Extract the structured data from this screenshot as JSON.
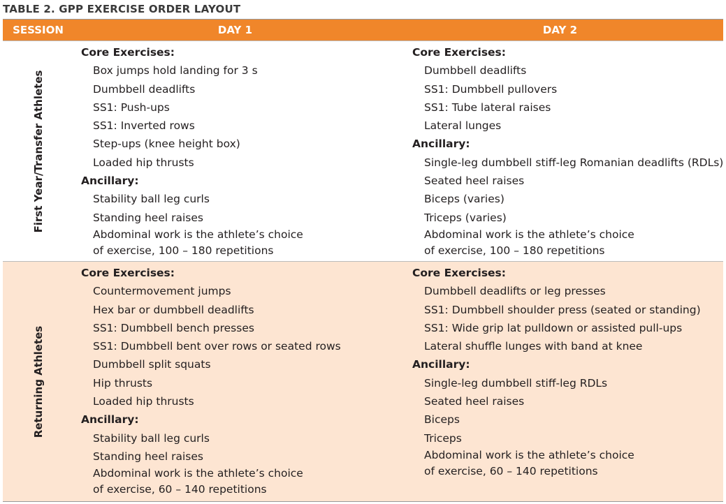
{
  "title": "TABLE 2. GPP EXERCISE ORDER LAYOUT",
  "table": {
    "headers": [
      "SESSION",
      "DAY 1",
      "DAY 2"
    ],
    "rows": [
      {
        "session": "First Year/Transfer Athletes",
        "days": [
          {
            "groups": [
              {
                "heading": "Core Exercises:",
                "items": [
                  "Box jumps hold landing for 3 s",
                  "Dumbbell deadlifts",
                  "SS1: Push-ups",
                  "SS1: Inverted rows",
                  "Step-ups (knee height box)",
                  "Loaded hip thrusts"
                ]
              },
              {
                "heading": "Ancillary:",
                "items": [
                  "Stability ball leg curls",
                  "Standing heel raises"
                ]
              }
            ],
            "note": [
              "Abdominal work is the athlete’s choice",
              "of exercise, 100 – 180 repetitions"
            ]
          },
          {
            "groups": [
              {
                "heading": "Core Exercises:",
                "items": [
                  "Dumbbell deadlifts",
                  "SS1: Dumbbell pullovers",
                  "SS1: Tube lateral raises",
                  "Lateral lunges"
                ]
              },
              {
                "heading": "Ancillary:",
                "items": [
                  "Single-leg dumbbell stiff-leg Romanian deadlifts (RDLs)",
                  "Seated heel raises",
                  "Biceps (varies)",
                  "Triceps (varies)"
                ]
              }
            ],
            "note": [
              "Abdominal work is the athlete’s choice",
              "of exercise, 100 – 180 repetitions"
            ]
          }
        ]
      },
      {
        "session": "Returning Athletes",
        "days": [
          {
            "groups": [
              {
                "heading": "Core Exercises:",
                "items": [
                  "Countermovement jumps",
                  "Hex bar or dumbbell deadlifts",
                  "SS1: Dumbbell bench presses",
                  "SS1: Dumbbell bent over rows or seated rows",
                  "Dumbbell split squats",
                  "Hip thrusts",
                  "Loaded hip thrusts"
                ]
              },
              {
                "heading": "Ancillary:",
                "items": [
                  "Stability ball leg curls",
                  "Standing heel raises"
                ]
              }
            ],
            "note": [
              "Abdominal work is the athlete’s choice",
              "of exercise, 60 – 140 repetitions"
            ]
          },
          {
            "groups": [
              {
                "heading": "Core Exercises:",
                "items": [
                  "Dumbbell deadlifts or leg presses",
                  "SS1: Dumbbell shoulder press (seated or standing)",
                  "SS1: Wide grip lat pulldown or assisted pull-ups",
                  "Lateral shuffle lunges with band at knee"
                ]
              },
              {
                "heading": "Ancillary:",
                "items": [
                  "Single-leg dumbbell stiff-leg RDLs",
                  "Seated heel raises",
                  "Biceps",
                  "Triceps"
                ]
              }
            ],
            "note": [
              "Abdominal work is the athlete’s choice",
              "of exercise, 60 – 140 repetitions"
            ]
          }
        ]
      }
    ]
  }
}
